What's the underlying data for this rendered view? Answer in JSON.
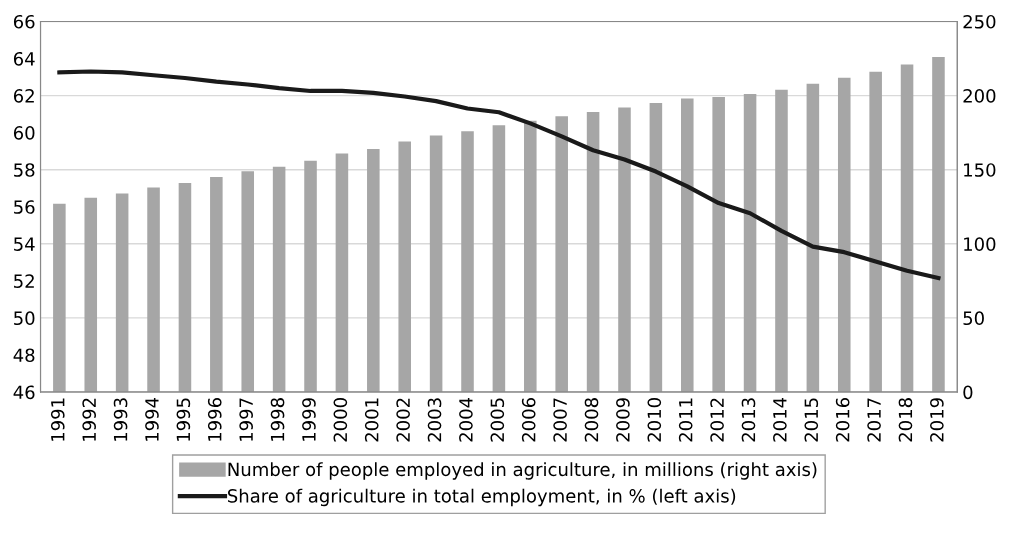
{
  "chart_data": {
    "type": "bar",
    "categories": [
      "1991",
      "1992",
      "1993",
      "1994",
      "1995",
      "1996",
      "1997",
      "1998",
      "1999",
      "2000",
      "2001",
      "2002",
      "2003",
      "2004",
      "2005",
      "2006",
      "2007",
      "2008",
      "2009",
      "2010",
      "2011",
      "2012",
      "2013",
      "2014",
      "2015",
      "2016",
      "2017",
      "2018",
      "2019"
    ],
    "series": [
      {
        "name": "Number of people employed in agriculture, in millions (right axis)",
        "axis": "y2",
        "color": "#a6a6a6",
        "values": [
          127,
          131,
          134,
          138,
          141,
          145,
          149,
          152,
          156,
          161,
          164,
          169,
          173,
          176,
          180,
          183,
          186,
          189,
          192,
          195,
          198,
          199,
          201,
          204,
          208,
          212,
          216,
          221,
          226
        ]
      },
      {
        "name": "Share of agriculture in total employment, in % (left axis)",
        "type": "line",
        "color": "#1a1a1a",
        "values": [
          63.25,
          63.3,
          63.25,
          63.1,
          62.95,
          62.75,
          62.6,
          62.4,
          62.25,
          62.25,
          62.15,
          61.95,
          61.7,
          61.3,
          61.1,
          60.5,
          59.8,
          59.05,
          58.55,
          57.9,
          57.1,
          56.2,
          55.65,
          54.7,
          53.85,
          53.55,
          53.05,
          52.55,
          52.15
        ]
      }
    ],
    "ylim": [
      46,
      66
    ],
    "yticks": [
      46,
      48,
      50,
      52,
      54,
      56,
      58,
      60,
      62,
      64,
      66
    ],
    "y2lim": [
      0,
      250
    ],
    "y2ticks": [
      0,
      50,
      100,
      150,
      200,
      250
    ],
    "grid": "y",
    "legend": "bottom",
    "marker": "none",
    "line_style": "solid"
  }
}
